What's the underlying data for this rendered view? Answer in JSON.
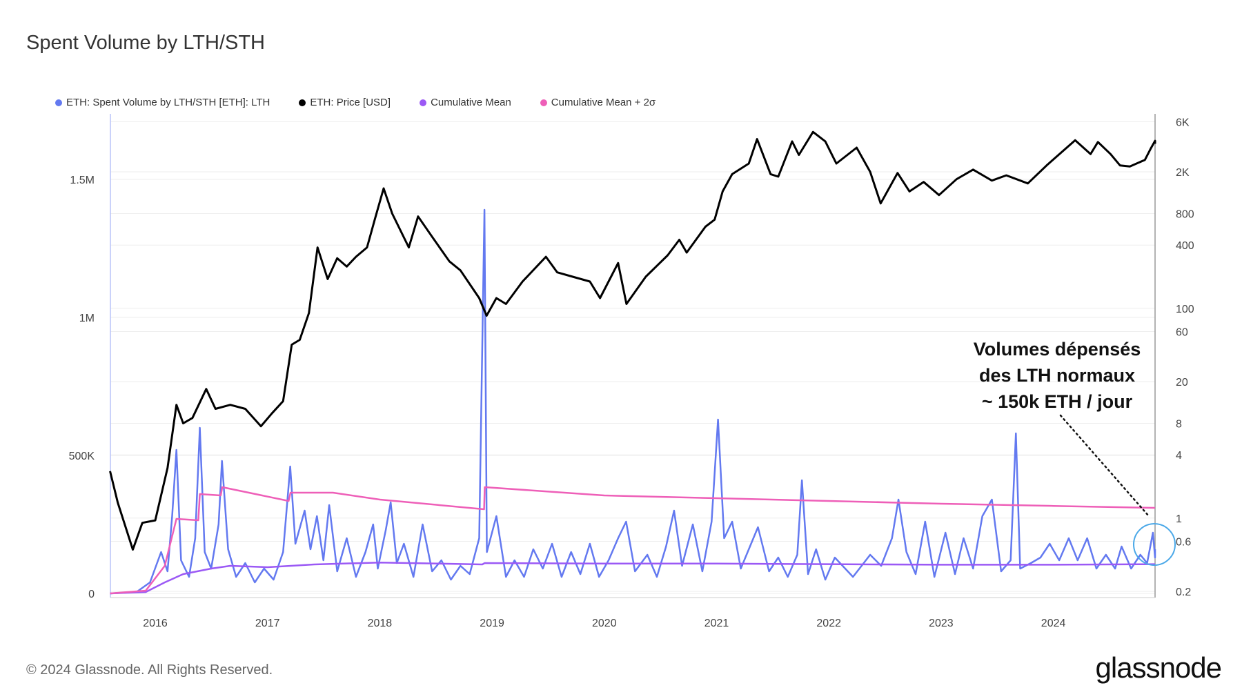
{
  "title": "Spent Volume by LTH/STH",
  "footer": "© 2024 Glassnode. All Rights Reserved.",
  "logo": "glassnode",
  "chart_data": {
    "type": "line",
    "title": "Spent Volume by LTH/STH",
    "legend_position": "top-left",
    "grid": true,
    "x_ticks": [
      "2016",
      "2017",
      "2018",
      "2019",
      "2020",
      "2021",
      "2022",
      "2023",
      "2024"
    ],
    "y_left": {
      "ticks": [
        {
          "v": 0,
          "label": "0"
        },
        {
          "v": 500000,
          "label": "500K"
        },
        {
          "v": 1000000,
          "label": "1M"
        },
        {
          "v": 1500000,
          "label": "1.5M"
        }
      ],
      "range": [
        0,
        1700000
      ]
    },
    "y_right": {
      "scale": "log",
      "ticks": [
        {
          "v": 6000,
          "label": "6K"
        },
        {
          "v": 2000,
          "label": "2K"
        },
        {
          "v": 800,
          "label": "800"
        },
        {
          "v": 400,
          "label": "400"
        },
        {
          "v": 100,
          "label": "100"
        },
        {
          "v": 60,
          "label": "60"
        },
        {
          "v": 20,
          "label": "20"
        },
        {
          "v": 8,
          "label": "8"
        },
        {
          "v": 4,
          "label": "4"
        },
        {
          "v": 1,
          "label": "1"
        },
        {
          "v": 0.6,
          "label": "0.6"
        },
        {
          "v": 0.2,
          "label": "0.2"
        }
      ],
      "range": [
        0.2,
        6000
      ]
    },
    "series": [
      {
        "name": "ETH: Spent Volume by LTH/STH [ETH]: LTH",
        "color": "#6379f0",
        "axis": "left",
        "points": [
          [
            "2015-08-07",
            0
          ],
          [
            "2015-11-01",
            5000
          ],
          [
            "2015-12-15",
            40000
          ],
          [
            "2016-01-20",
            150000
          ],
          [
            "2016-02-10",
            80000
          ],
          [
            "2016-02-25",
            280000
          ],
          [
            "2016-03-10",
            520000
          ],
          [
            "2016-03-25",
            120000
          ],
          [
            "2016-04-20",
            60000
          ],
          [
            "2016-05-10",
            200000
          ],
          [
            "2016-05-25",
            600000
          ],
          [
            "2016-06-10",
            150000
          ],
          [
            "2016-07-01",
            90000
          ],
          [
            "2016-07-25",
            250000
          ],
          [
            "2016-08-05",
            480000
          ],
          [
            "2016-08-25",
            160000
          ],
          [
            "2016-09-20",
            60000
          ],
          [
            "2016-10-20",
            110000
          ],
          [
            "2016-11-20",
            40000
          ],
          [
            "2016-12-20",
            90000
          ],
          [
            "2017-01-20",
            50000
          ],
          [
            "2017-02-20",
            150000
          ],
          [
            "2017-03-15",
            460000
          ],
          [
            "2017-04-01",
            180000
          ],
          [
            "2017-05-01",
            300000
          ],
          [
            "2017-05-20",
            160000
          ],
          [
            "2017-06-10",
            280000
          ],
          [
            "2017-07-01",
            120000
          ],
          [
            "2017-07-20",
            320000
          ],
          [
            "2017-08-15",
            80000
          ],
          [
            "2017-09-15",
            200000
          ],
          [
            "2017-10-15",
            60000
          ],
          [
            "2017-11-15",
            150000
          ],
          [
            "2017-12-10",
            250000
          ],
          [
            "2017-12-25",
            90000
          ],
          [
            "2018-01-20",
            230000
          ],
          [
            "2018-02-05",
            330000
          ],
          [
            "2018-02-25",
            110000
          ],
          [
            "2018-03-20",
            180000
          ],
          [
            "2018-04-20",
            60000
          ],
          [
            "2018-05-20",
            250000
          ],
          [
            "2018-06-20",
            80000
          ],
          [
            "2018-07-20",
            120000
          ],
          [
            "2018-08-20",
            50000
          ],
          [
            "2018-09-20",
            100000
          ],
          [
            "2018-10-20",
            70000
          ],
          [
            "2018-11-20",
            200000
          ],
          [
            "2018-12-07",
            1390000
          ],
          [
            "2018-12-15",
            150000
          ],
          [
            "2019-01-15",
            280000
          ],
          [
            "2019-02-15",
            60000
          ],
          [
            "2019-03-15",
            120000
          ],
          [
            "2019-04-15",
            60000
          ],
          [
            "2019-05-15",
            160000
          ],
          [
            "2019-06-15",
            90000
          ],
          [
            "2019-07-15",
            180000
          ],
          [
            "2019-08-15",
            60000
          ],
          [
            "2019-09-15",
            150000
          ],
          [
            "2019-10-15",
            70000
          ],
          [
            "2019-11-15",
            180000
          ],
          [
            "2019-12-15",
            60000
          ],
          [
            "2020-01-15",
            120000
          ],
          [
            "2020-02-15",
            200000
          ],
          [
            "2020-03-12",
            260000
          ],
          [
            "2020-04-10",
            80000
          ],
          [
            "2020-05-20",
            140000
          ],
          [
            "2020-06-20",
            60000
          ],
          [
            "2020-07-20",
            170000
          ],
          [
            "2020-08-15",
            300000
          ],
          [
            "2020-09-10",
            100000
          ],
          [
            "2020-10-15",
            250000
          ],
          [
            "2020-11-15",
            80000
          ],
          [
            "2020-12-15",
            260000
          ],
          [
            "2021-01-05",
            630000
          ],
          [
            "2021-01-25",
            200000
          ],
          [
            "2021-02-20",
            260000
          ],
          [
            "2021-03-20",
            90000
          ],
          [
            "2021-05-15",
            240000
          ],
          [
            "2021-06-20",
            80000
          ],
          [
            "2021-07-20",
            130000
          ],
          [
            "2021-08-20",
            60000
          ],
          [
            "2021-09-20",
            140000
          ],
          [
            "2021-10-05",
            410000
          ],
          [
            "2021-10-25",
            70000
          ],
          [
            "2021-11-20",
            160000
          ],
          [
            "2021-12-20",
            50000
          ],
          [
            "2022-01-20",
            130000
          ],
          [
            "2022-03-20",
            60000
          ],
          [
            "2022-05-15",
            140000
          ],
          [
            "2022-06-20",
            100000
          ],
          [
            "2022-07-25",
            200000
          ],
          [
            "2022-08-15",
            340000
          ],
          [
            "2022-09-10",
            150000
          ],
          [
            "2022-10-10",
            70000
          ],
          [
            "2022-11-10",
            260000
          ],
          [
            "2022-12-10",
            60000
          ],
          [
            "2023-01-15",
            220000
          ],
          [
            "2023-02-15",
            70000
          ],
          [
            "2023-03-15",
            200000
          ],
          [
            "2023-04-15",
            90000
          ],
          [
            "2023-05-15",
            280000
          ],
          [
            "2023-06-15",
            340000
          ],
          [
            "2023-07-15",
            80000
          ],
          [
            "2023-08-15",
            120000
          ],
          [
            "2023-09-01",
            580000
          ],
          [
            "2023-09-15",
            90000
          ],
          [
            "2023-10-20",
            110000
          ],
          [
            "2023-11-20",
            130000
          ],
          [
            "2023-12-20",
            180000
          ],
          [
            "2024-01-20",
            120000
          ],
          [
            "2024-02-20",
            200000
          ],
          [
            "2024-03-20",
            120000
          ],
          [
            "2024-04-20",
            200000
          ],
          [
            "2024-05-20",
            90000
          ],
          [
            "2024-06-20",
            140000
          ],
          [
            "2024-07-20",
            90000
          ],
          [
            "2024-08-10",
            170000
          ],
          [
            "2024-09-10",
            90000
          ],
          [
            "2024-10-10",
            140000
          ],
          [
            "2024-11-01",
            110000
          ],
          [
            "2024-11-20",
            220000
          ],
          [
            "2024-12-01",
            130000
          ],
          [
            "2024-12-10",
            160000
          ]
        ]
      },
      {
        "name": "ETH: Price [USD]",
        "color": "#000000",
        "axis": "right",
        "points": [
          [
            "2015-08-07",
            2.8
          ],
          [
            "2015-09-01",
            1.4
          ],
          [
            "2015-10-20",
            0.5
          ],
          [
            "2015-11-20",
            0.9
          ],
          [
            "2016-01-01",
            0.95
          ],
          [
            "2016-02-10",
            3
          ],
          [
            "2016-03-10",
            12
          ],
          [
            "2016-04-01",
            8
          ],
          [
            "2016-05-01",
            9
          ],
          [
            "2016-06-15",
            17
          ],
          [
            "2016-07-15",
            11
          ],
          [
            "2016-09-01",
            12
          ],
          [
            "2016-10-20",
            11
          ],
          [
            "2016-12-10",
            7.5
          ],
          [
            "2017-01-15",
            10
          ],
          [
            "2017-02-20",
            13
          ],
          [
            "2017-03-20",
            45
          ],
          [
            "2017-04-15",
            50
          ],
          [
            "2017-05-15",
            90
          ],
          [
            "2017-06-12",
            380
          ],
          [
            "2017-07-15",
            190
          ],
          [
            "2017-08-15",
            300
          ],
          [
            "2017-09-15",
            250
          ],
          [
            "2017-10-15",
            310
          ],
          [
            "2017-11-20",
            380
          ],
          [
            "2017-12-15",
            700
          ],
          [
            "2018-01-13",
            1390
          ],
          [
            "2018-02-10",
            800
          ],
          [
            "2018-04-05",
            380
          ],
          [
            "2018-05-05",
            750
          ],
          [
            "2018-06-20",
            480
          ],
          [
            "2018-08-15",
            280
          ],
          [
            "2018-09-20",
            230
          ],
          [
            "2018-11-20",
            125
          ],
          [
            "2018-12-14",
            85
          ],
          [
            "2019-01-15",
            125
          ],
          [
            "2019-02-15",
            110
          ],
          [
            "2019-04-10",
            180
          ],
          [
            "2019-06-25",
            310
          ],
          [
            "2019-08-01",
            220
          ],
          [
            "2019-09-20",
            200
          ],
          [
            "2019-11-15",
            180
          ],
          [
            "2019-12-18",
            125
          ],
          [
            "2020-02-15",
            270
          ],
          [
            "2020-03-13",
            110
          ],
          [
            "2020-05-15",
            200
          ],
          [
            "2020-07-25",
            320
          ],
          [
            "2020-09-01",
            450
          ],
          [
            "2020-09-25",
            340
          ],
          [
            "2020-11-25",
            600
          ],
          [
            "2020-12-25",
            700
          ],
          [
            "2021-01-20",
            1300
          ],
          [
            "2021-02-20",
            1900
          ],
          [
            "2021-04-15",
            2400
          ],
          [
            "2021-05-12",
            4100
          ],
          [
            "2021-06-25",
            1900
          ],
          [
            "2021-07-20",
            1800
          ],
          [
            "2021-09-03",
            3900
          ],
          [
            "2021-09-25",
            2900
          ],
          [
            "2021-11-10",
            4800
          ],
          [
            "2021-12-20",
            3900
          ],
          [
            "2022-01-25",
            2400
          ],
          [
            "2022-04-01",
            3400
          ],
          [
            "2022-05-15",
            2000
          ],
          [
            "2022-06-18",
            1000
          ],
          [
            "2022-08-12",
            1950
          ],
          [
            "2022-09-20",
            1300
          ],
          [
            "2022-11-05",
            1600
          ],
          [
            "2022-12-25",
            1200
          ],
          [
            "2023-02-20",
            1700
          ],
          [
            "2023-04-15",
            2100
          ],
          [
            "2023-06-15",
            1650
          ],
          [
            "2023-08-01",
            1850
          ],
          [
            "2023-10-10",
            1550
          ],
          [
            "2023-12-10",
            2300
          ],
          [
            "2024-03-12",
            4000
          ],
          [
            "2024-05-01",
            2950
          ],
          [
            "2024-05-25",
            3850
          ],
          [
            "2024-07-05",
            2950
          ],
          [
            "2024-08-05",
            2300
          ],
          [
            "2024-09-06",
            2250
          ],
          [
            "2024-10-25",
            2600
          ],
          [
            "2024-11-12",
            3300
          ],
          [
            "2024-12-08",
            3950
          ],
          [
            "2024-12-15",
            3700
          ]
        ]
      },
      {
        "name": "Cumulative Mean",
        "color": "#9b59f5",
        "axis": "left",
        "points": [
          [
            "2015-08-07",
            0
          ],
          [
            "2015-12-01",
            5000
          ],
          [
            "2016-02-01",
            40000
          ],
          [
            "2016-04-01",
            70000
          ],
          [
            "2016-07-01",
            90000
          ],
          [
            "2016-09-01",
            100000
          ],
          [
            "2017-01-01",
            95000
          ],
          [
            "2017-06-01",
            105000
          ],
          [
            "2018-01-01",
            112000
          ],
          [
            "2018-11-30",
            105000
          ],
          [
            "2018-12-08",
            110000
          ],
          [
            "2020-01-01",
            108000
          ],
          [
            "2021-01-01",
            108000
          ],
          [
            "2022-01-01",
            106000
          ],
          [
            "2023-01-01",
            104000
          ],
          [
            "2024-01-01",
            104000
          ],
          [
            "2024-12-15",
            106000
          ]
        ]
      },
      {
        "name": "Cumulative Mean + 2σ",
        "color": "#ee5fb8",
        "axis": "left",
        "points": [
          [
            "2015-08-07",
            0
          ],
          [
            "2015-12-01",
            10000
          ],
          [
            "2016-02-01",
            100000
          ],
          [
            "2016-03-10",
            270000
          ],
          [
            "2016-05-20",
            265000
          ],
          [
            "2016-05-25",
            360000
          ],
          [
            "2016-08-01",
            355000
          ],
          [
            "2016-08-06",
            385000
          ],
          [
            "2017-03-10",
            335000
          ],
          [
            "2017-03-16",
            365000
          ],
          [
            "2017-08-01",
            365000
          ],
          [
            "2018-01-01",
            340000
          ],
          [
            "2018-12-06",
            305000
          ],
          [
            "2018-12-08",
            385000
          ],
          [
            "2020-01-01",
            355000
          ],
          [
            "2021-01-01",
            345000
          ],
          [
            "2022-01-01",
            335000
          ],
          [
            "2023-01-01",
            325000
          ],
          [
            "2024-01-01",
            317000
          ],
          [
            "2024-12-15",
            310000
          ]
        ]
      }
    ],
    "annotation": {
      "lines": [
        "Volumes dépensés",
        "des LTH normaux",
        "~ 150k ETH / jour"
      ]
    }
  }
}
